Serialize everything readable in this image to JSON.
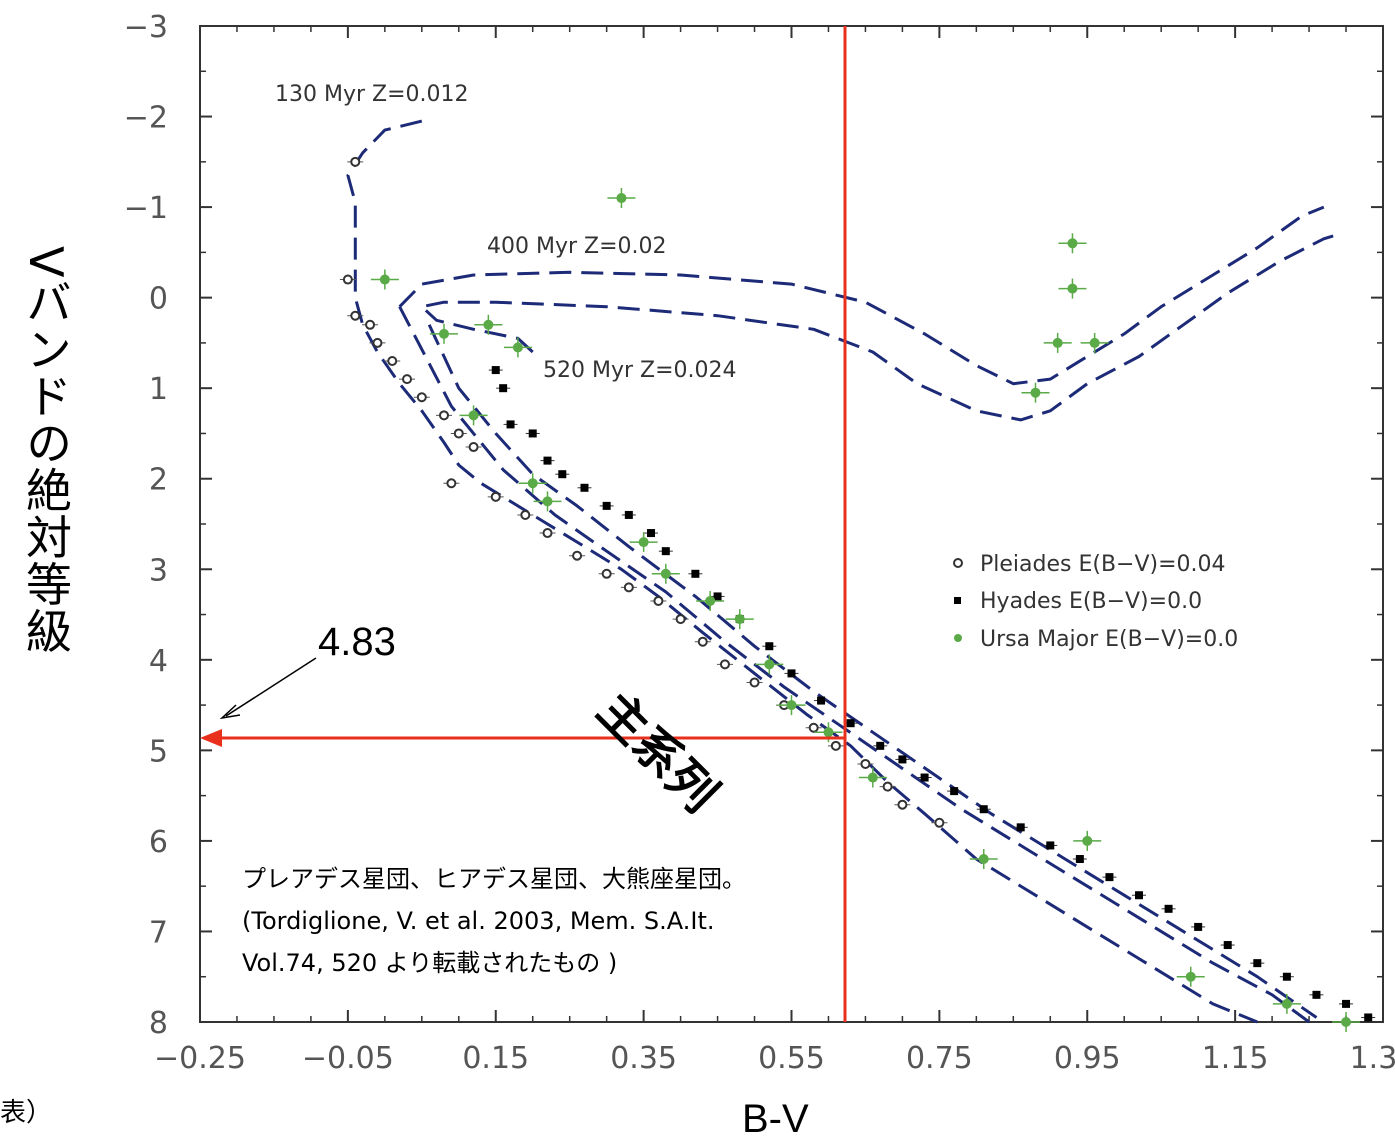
{
  "chart_data": {
    "type": "scatter",
    "xlabel": "B-V",
    "ylabel": "Vバンドの絶対等級",
    "xlim": [
      -0.25,
      1.35
    ],
    "ylim": [
      8,
      -3
    ],
    "y_inverted": true,
    "x_ticks": [
      "−0.25",
      "−0.05",
      "0.15",
      "0.35",
      "0.55",
      "0.75",
      "0.95",
      "1.15",
      "1.35"
    ],
    "y_ticks": [
      "−3",
      "−2",
      "−1",
      "0",
      "1",
      "2",
      "3",
      "4",
      "5",
      "6",
      "7",
      "8"
    ],
    "grid": false,
    "legend_position": "center-right",
    "series": [
      {
        "name": "Pleiades E(B−V)=0.04",
        "marker": "open-circle",
        "color": "#333333",
        "points": [
          [
            -0.04,
            -1.5
          ],
          [
            -0.05,
            -0.2
          ],
          [
            -0.04,
            0.2
          ],
          [
            -0.02,
            0.3
          ],
          [
            -0.01,
            0.5
          ],
          [
            0.01,
            0.7
          ],
          [
            0.03,
            0.9
          ],
          [
            0.05,
            1.1
          ],
          [
            0.08,
            1.3
          ],
          [
            0.1,
            1.5
          ],
          [
            0.12,
            1.65
          ],
          [
            0.09,
            2.05
          ],
          [
            0.15,
            2.2
          ],
          [
            0.19,
            2.4
          ],
          [
            0.22,
            2.6
          ],
          [
            0.26,
            2.85
          ],
          [
            0.3,
            3.05
          ],
          [
            0.33,
            3.2
          ],
          [
            0.37,
            3.35
          ],
          [
            0.4,
            3.55
          ],
          [
            0.43,
            3.8
          ],
          [
            0.46,
            4.05
          ],
          [
            0.5,
            4.25
          ],
          [
            0.54,
            4.5
          ],
          [
            0.58,
            4.75
          ],
          [
            0.61,
            4.95
          ],
          [
            0.65,
            5.15
          ],
          [
            0.68,
            5.4
          ],
          [
            0.7,
            5.6
          ],
          [
            0.75,
            5.8
          ]
        ]
      },
      {
        "name": "Hyades E(B−V)=0.0",
        "marker": "filled-square",
        "color": "#000000",
        "points": [
          [
            0.15,
            0.8
          ],
          [
            0.16,
            1.0
          ],
          [
            0.17,
            1.4
          ],
          [
            0.2,
            1.5
          ],
          [
            0.22,
            1.8
          ],
          [
            0.24,
            1.95
          ],
          [
            0.27,
            2.1
          ],
          [
            0.3,
            2.3
          ],
          [
            0.33,
            2.4
          ],
          [
            0.36,
            2.6
          ],
          [
            0.38,
            2.8
          ],
          [
            0.42,
            3.05
          ],
          [
            0.45,
            3.3
          ],
          [
            0.48,
            3.55
          ],
          [
            0.52,
            3.85
          ],
          [
            0.55,
            4.15
          ],
          [
            0.59,
            4.45
          ],
          [
            0.63,
            4.7
          ],
          [
            0.67,
            4.95
          ],
          [
            0.7,
            5.1
          ],
          [
            0.73,
            5.3
          ],
          [
            0.77,
            5.45
          ],
          [
            0.81,
            5.65
          ],
          [
            0.86,
            5.85
          ],
          [
            0.9,
            6.05
          ],
          [
            0.94,
            6.2
          ],
          [
            0.98,
            6.4
          ],
          [
            1.02,
            6.6
          ],
          [
            1.06,
            6.75
          ],
          [
            1.1,
            6.95
          ],
          [
            1.14,
            7.15
          ],
          [
            1.18,
            7.35
          ],
          [
            1.22,
            7.5
          ],
          [
            1.26,
            7.7
          ],
          [
            1.3,
            7.8
          ],
          [
            1.33,
            7.95
          ]
        ]
      },
      {
        "name": "Ursa Major E(B−V)=0.0",
        "marker": "green-star",
        "color": "#5aaa48",
        "points": [
          [
            0.32,
            -1.1
          ],
          [
            0.93,
            -0.6
          ],
          [
            0.93,
            -0.1
          ],
          [
            0.91,
            0.5
          ],
          [
            0.96,
            0.5
          ],
          [
            0.88,
            1.05
          ],
          [
            0.0,
            -0.2
          ],
          [
            0.08,
            0.4
          ],
          [
            0.14,
            0.3
          ],
          [
            0.18,
            0.55
          ],
          [
            0.12,
            1.3
          ],
          [
            0.2,
            2.05
          ],
          [
            0.22,
            2.25
          ],
          [
            0.35,
            2.7
          ],
          [
            0.38,
            3.05
          ],
          [
            0.44,
            3.35
          ],
          [
            0.48,
            3.55
          ],
          [
            0.52,
            4.05
          ],
          [
            0.55,
            4.5
          ],
          [
            0.6,
            4.8
          ],
          [
            0.66,
            5.3
          ],
          [
            0.81,
            6.2
          ],
          [
            0.95,
            6.0
          ],
          [
            1.09,
            7.5
          ],
          [
            1.22,
            7.8
          ],
          [
            1.3,
            8.0
          ]
        ]
      }
    ],
    "isochrones": [
      {
        "name": "130 Myr  Z=0.012",
        "points": [
          [
            0.05,
            -1.95
          ],
          [
            0.0,
            -1.85
          ],
          [
            -0.03,
            -1.6
          ],
          [
            -0.05,
            -1.35
          ],
          [
            -0.04,
            -1.05
          ],
          [
            -0.04,
            -0.5
          ],
          [
            -0.04,
            0.0
          ],
          [
            -0.03,
            0.3
          ],
          [
            -0.01,
            0.6
          ],
          [
            0.02,
            0.95
          ],
          [
            0.05,
            1.25
          ],
          [
            0.08,
            1.6
          ],
          [
            0.1,
            1.85
          ],
          [
            0.13,
            2.05
          ],
          [
            0.17,
            2.25
          ],
          [
            0.22,
            2.5
          ],
          [
            0.27,
            2.75
          ],
          [
            0.32,
            3.0
          ],
          [
            0.37,
            3.3
          ],
          [
            0.43,
            3.7
          ],
          [
            0.5,
            4.15
          ],
          [
            0.57,
            4.6
          ],
          [
            0.63,
            4.95
          ],
          [
            0.68,
            5.35
          ],
          [
            0.73,
            5.7
          ],
          [
            0.8,
            6.2
          ],
          [
            0.88,
            6.6
          ],
          [
            0.96,
            7.0
          ],
          [
            1.04,
            7.4
          ],
          [
            1.12,
            7.8
          ],
          [
            1.18,
            8.0
          ]
        ]
      },
      {
        "name": "400 Myr Z=0.02",
        "points": [
          [
            0.02,
            0.1
          ],
          [
            0.05,
            -0.15
          ],
          [
            0.12,
            -0.25
          ],
          [
            0.25,
            -0.28
          ],
          [
            0.4,
            -0.25
          ],
          [
            0.55,
            -0.15
          ],
          [
            0.65,
            0.05
          ],
          [
            0.73,
            0.4
          ],
          [
            0.8,
            0.75
          ],
          [
            0.85,
            0.95
          ],
          [
            0.9,
            0.9
          ],
          [
            0.95,
            0.65
          ],
          [
            1.0,
            0.4
          ],
          [
            1.05,
            0.1
          ],
          [
            1.12,
            -0.25
          ],
          [
            1.18,
            -0.55
          ],
          [
            1.24,
            -0.9
          ],
          [
            1.27,
            -1.0
          ]
        ]
      },
      {
        "name": "400 Myr lower branch",
        "points": [
          [
            0.02,
            0.1
          ],
          [
            0.09,
            1.2
          ],
          [
            0.16,
            1.9
          ],
          [
            0.23,
            2.4
          ],
          [
            0.3,
            2.8
          ],
          [
            0.38,
            3.25
          ],
          [
            0.46,
            3.8
          ],
          [
            0.54,
            4.3
          ],
          [
            0.62,
            4.75
          ],
          [
            0.7,
            5.2
          ],
          [
            0.78,
            5.65
          ],
          [
            0.87,
            6.1
          ],
          [
            0.95,
            6.5
          ],
          [
            1.03,
            6.9
          ],
          [
            1.12,
            7.35
          ],
          [
            1.2,
            7.7
          ],
          [
            1.25,
            8.0
          ]
        ]
      },
      {
        "name": "520 Myr  Z=0.024",
        "points": [
          [
            0.2,
            0.6
          ],
          [
            0.18,
            0.45
          ],
          [
            0.12,
            0.35
          ],
          [
            0.07,
            0.25
          ],
          [
            0.05,
            0.1
          ],
          [
            0.08,
            0.05
          ],
          [
            0.15,
            0.05
          ],
          [
            0.3,
            0.1
          ],
          [
            0.45,
            0.2
          ],
          [
            0.58,
            0.35
          ],
          [
            0.66,
            0.6
          ],
          [
            0.72,
            0.95
          ],
          [
            0.8,
            1.25
          ],
          [
            0.86,
            1.35
          ],
          [
            0.9,
            1.25
          ],
          [
            0.95,
            0.95
          ],
          [
            1.02,
            0.65
          ],
          [
            1.08,
            0.3
          ],
          [
            1.14,
            -0.05
          ],
          [
            1.21,
            -0.4
          ],
          [
            1.27,
            -0.65
          ],
          [
            1.29,
            -0.7
          ]
        ]
      },
      {
        "name": "520 Myr lower branch",
        "points": [
          [
            0.06,
            0.3
          ],
          [
            0.1,
            1.0
          ],
          [
            0.15,
            1.5
          ],
          [
            0.2,
            1.95
          ],
          [
            0.26,
            2.3
          ],
          [
            0.33,
            2.75
          ],
          [
            0.42,
            3.3
          ],
          [
            0.5,
            3.85
          ],
          [
            0.58,
            4.35
          ],
          [
            0.66,
            4.8
          ],
          [
            0.74,
            5.25
          ],
          [
            0.82,
            5.7
          ],
          [
            0.91,
            6.15
          ],
          [
            1.0,
            6.6
          ],
          [
            1.09,
            7.05
          ],
          [
            1.18,
            7.5
          ],
          [
            1.26,
            7.95
          ]
        ]
      }
    ],
    "reference_lines": {
      "x": 0.65,
      "y": 4.83
    }
  },
  "texts": {
    "iso1": "130 Myr  Z=0.012",
    "iso2": "400 Myr Z=0.02",
    "iso3": "520 Myr  Z=0.024",
    "legend1": "Pleiades E(B−V)=0.04",
    "legend2": "Hyades E(B−V)=0.0",
    "legend3": "Ursa Major E(B−V)=0.0",
    "xlabel": "B-V",
    "ylabel": "Vバンドの絶対等級",
    "callout": "4.83",
    "main_sequence": "主系列",
    "annot1": "プレアデス星団、ヒアデス星団、大熊座星団。",
    "annot2": "(Tordiglione, V. et al. 2003, Mem. S.A.It.",
    "annot3": " Vol.74, 520 より転載されたもの )",
    "corner": "表）"
  },
  "colors": {
    "red_line": "#e8301c",
    "isochrone": "#1c2a78",
    "ursa": "#5aaa48",
    "axis": "#333333"
  }
}
